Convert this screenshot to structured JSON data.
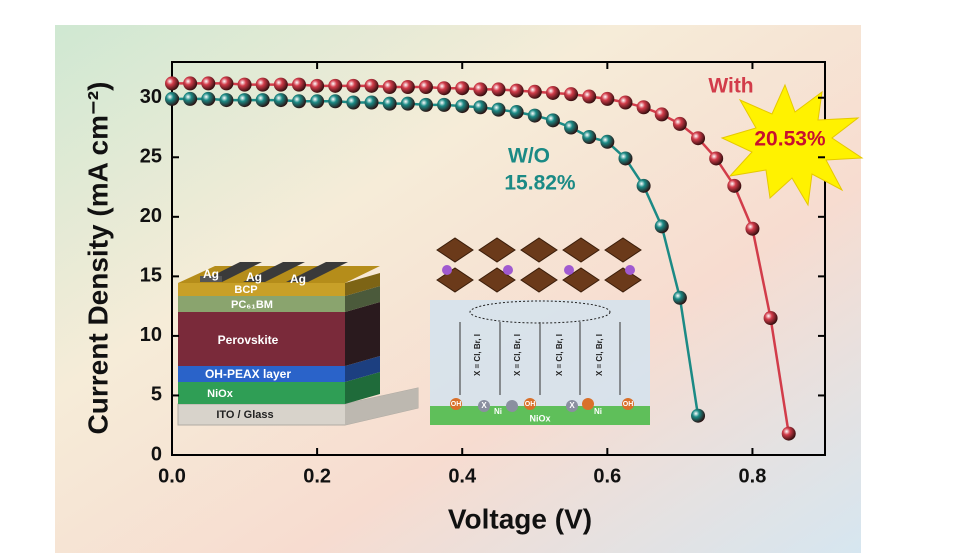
{
  "chart_data": {
    "type": "line",
    "y_label": "Current Density (mA cm⁻²)",
    "x_label": "Voltage (V)",
    "x": [
      0,
      0.025,
      0.05,
      0.075,
      0.1,
      0.125,
      0.15,
      0.175,
      0.2,
      0.225,
      0.25,
      0.275,
      0.3,
      0.325,
      0.35,
      0.375,
      0.4,
      0.425,
      0.45,
      0.475,
      0.5,
      0.525,
      0.55,
      0.575,
      0.6,
      0.625,
      0.65,
      0.675,
      0.7,
      0.725,
      0.75,
      0.775,
      0.8,
      0.825,
      0.85
    ],
    "series": [
      {
        "name": "With",
        "color": "#d23c4a",
        "values": [
          31.2,
          31.2,
          31.2,
          31.2,
          31.1,
          31.1,
          31.1,
          31.1,
          31.0,
          31.0,
          31.0,
          31.0,
          30.9,
          30.9,
          30.9,
          30.8,
          30.8,
          30.7,
          30.7,
          30.6,
          30.5,
          30.4,
          30.3,
          30.1,
          29.9,
          29.6,
          29.2,
          28.6,
          27.8,
          26.6,
          24.9,
          22.6,
          19.0,
          11.5,
          1.8
        ]
      },
      {
        "name": "W/O",
        "color": "#1b8a85",
        "values": [
          29.9,
          29.9,
          29.9,
          29.8,
          29.8,
          29.8,
          29.8,
          29.7,
          29.7,
          29.7,
          29.6,
          29.6,
          29.5,
          29.5,
          29.4,
          29.4,
          29.3,
          29.2,
          29.0,
          28.8,
          28.5,
          28.1,
          27.5,
          26.7,
          26.3,
          24.9,
          22.6,
          19.2,
          13.2,
          3.3,
          null,
          null,
          null,
          null,
          null
        ]
      }
    ],
    "annotations": [
      "20.53%",
      "15.82%"
    ],
    "xlim": [
      0,
      0.9
    ],
    "ylim": [
      0,
      33
    ],
    "xticks": [
      {
        "value": 0,
        "label": "0.0"
      },
      0.2,
      0.4,
      0.6,
      0.8
    ],
    "yticks": [
      0,
      5,
      10,
      15,
      20,
      25,
      30
    ],
    "device_labels": [
      "Ag",
      "BCP",
      "PC₆₁BM",
      "Perovskite",
      "OH-PEAX layer",
      "NiOx",
      "ITO / Glass"
    ],
    "interface_labels": [
      "X = Cl, Br, I",
      "OH",
      "Ni",
      "X",
      "NiOx"
    ]
  }
}
